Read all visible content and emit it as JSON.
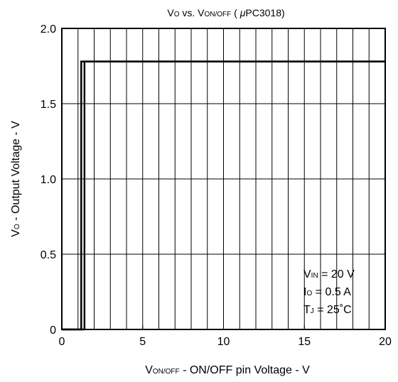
{
  "chart_data": {
    "type": "line",
    "title": [
      "V",
      "O",
      " vs. V",
      "ON/OFF",
      " ( ",
      "μ",
      "PC3018)"
    ],
    "xlabel": [
      "V",
      "ON/OFF",
      " - ON/OFF pin Voltage - V"
    ],
    "ylabel": [
      "V",
      "O",
      " - Output Voltage - V"
    ],
    "annotation": [
      [
        "V",
        "IN",
        " = 20 V"
      ],
      [
        "I",
        "O",
        " = 0.5 A"
      ],
      [
        "T",
        "J",
        " = 25˚C"
      ]
    ],
    "series": [
      {
        "color": "#000000",
        "x": [
          0,
          1.4,
          1.4,
          20
        ],
        "values": [
          0,
          0,
          1.78,
          1.78
        ]
      },
      {
        "color": "#000000",
        "x": [
          20,
          1.2,
          1.2,
          0
        ],
        "values": [
          1.78,
          1.78,
          0,
          0
        ]
      }
    ],
    "xlim": [
      0,
      20
    ],
    "xticks": [
      0,
      5,
      10,
      15,
      20
    ],
    "xgrid": [
      1,
      2,
      3,
      4,
      5,
      6,
      7,
      8,
      9,
      10,
      11,
      12,
      13,
      14,
      15,
      16,
      17,
      18,
      19
    ],
    "ylim": [
      0,
      2
    ],
    "yticks": [
      0,
      0.5,
      {
        "value": 1,
        "label": "1.0"
      },
      1.5,
      {
        "value": 2,
        "label": "2.0"
      }
    ],
    "grid": true
  }
}
